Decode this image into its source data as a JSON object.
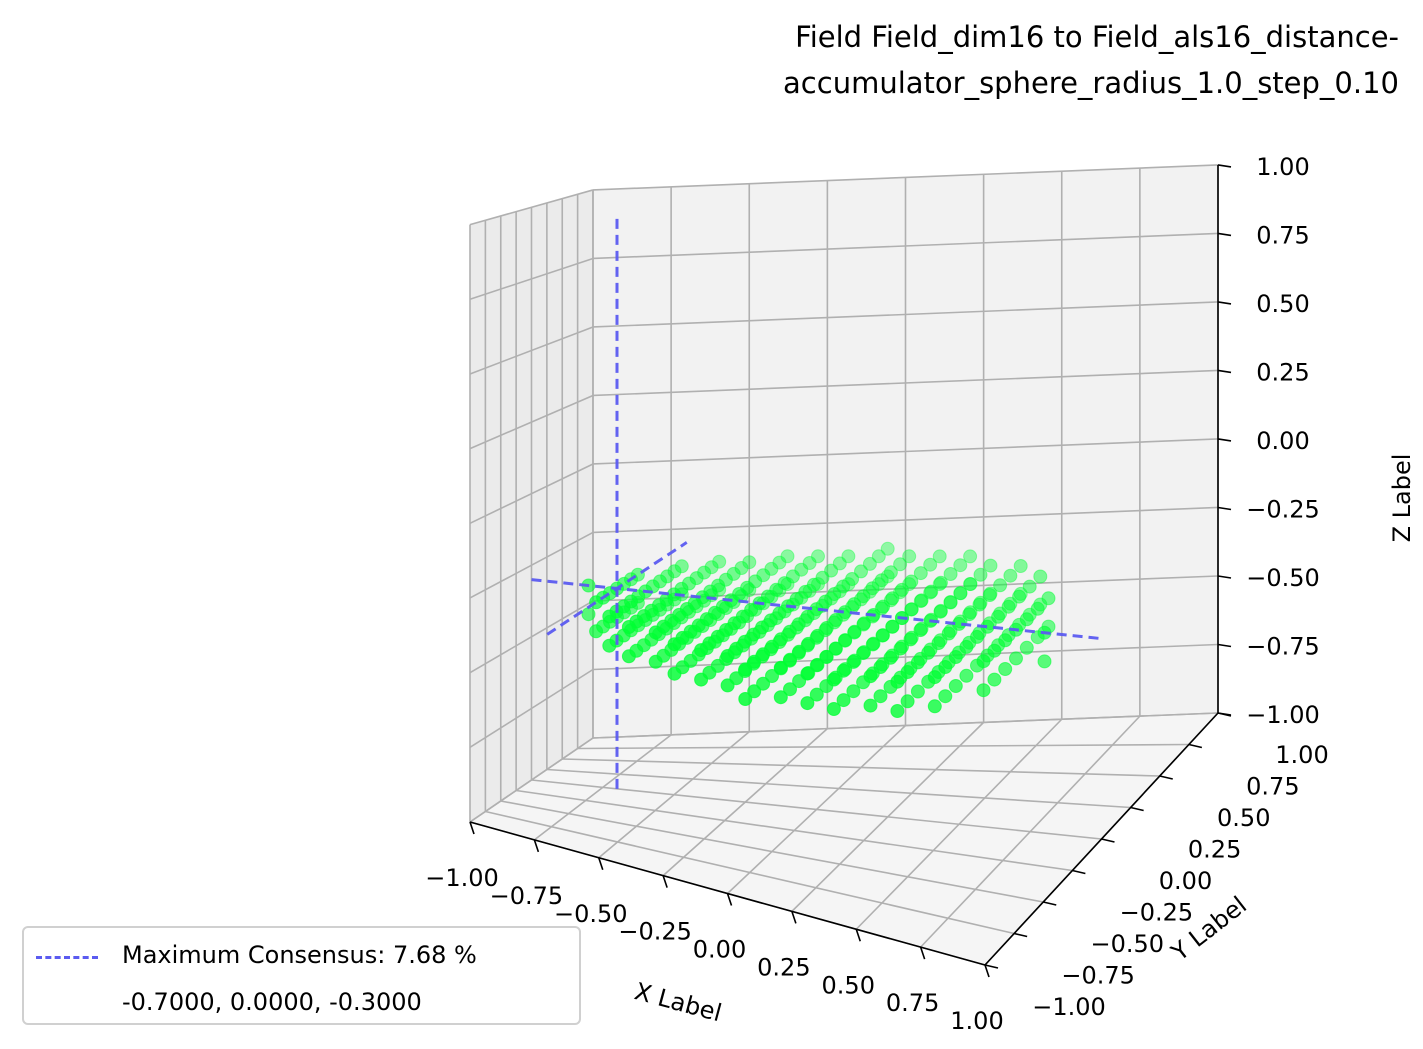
{
  "chart_data": {
    "type": "scatter",
    "title": [
      "Field Field_dim16 to Field_als16_distance-",
      "accumulator_sphere_radius_1.0_step_0.10"
    ],
    "xlabel": "X Label",
    "ylabel": "Y Label",
    "zlabel": "Z Label",
    "xlim": [
      -1.0,
      1.0
    ],
    "ylim": [
      -1.0,
      1.0
    ],
    "zlim": [
      -1.0,
      1.0
    ],
    "xticks": [
      "−1.00",
      "−0.75",
      "−0.50",
      "−0.25",
      "0.00",
      "0.25",
      "0.50",
      "0.75",
      "1.00"
    ],
    "yticks": [
      "−1.00",
      "−0.75",
      "−0.50",
      "−0.25",
      "0.00",
      "0.25",
      "0.50",
      "0.75",
      "1.00"
    ],
    "zticks": [
      "−1.00",
      "−0.75",
      "−0.50",
      "−0.25",
      "0.00",
      "0.25",
      "0.50",
      "0.75",
      "1.00"
    ],
    "grid": true,
    "points": {
      "description_free": true,
      "shape": "disk",
      "radius": 0.8,
      "step": 0.1,
      "z_values": [
        -0.4,
        -0.3
      ],
      "color": "#00ff33"
    },
    "consensus": {
      "point": [
        -0.7,
        0.0,
        -0.3
      ],
      "color": "#5b5bf0",
      "legend_label": "Maximum Consensus: 7.68 %",
      "legend_coords": "-0.7000, 0.0000, -0.3000"
    },
    "legend_location": "lower-left"
  }
}
